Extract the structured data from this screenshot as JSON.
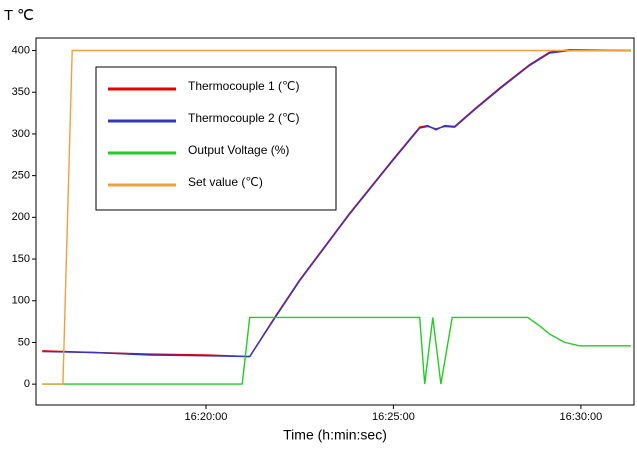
{
  "chart_data": {
    "type": "line",
    "ylabel": "T ℃",
    "xlabel": "Time (h:min:sec)",
    "xlim": [
      "16:15:28",
      "16:31:25"
    ],
    "xticks": [
      "16:20:00",
      "16:25:00",
      "16:30:00"
    ],
    "ylim": [
      -25,
      415
    ],
    "yticks": [
      0,
      50,
      100,
      150,
      200,
      250,
      300,
      350,
      400
    ],
    "grid": false,
    "legend": "upper left",
    "series": [
      {
        "name": "Thermocouple 1 (℃)",
        "color": "#e00000",
        "x": [
          "16:15:38",
          "16:17:00",
          "16:18:30",
          "16:20:00",
          "16:21:10",
          "16:21:50",
          "16:22:30",
          "16:23:50",
          "16:25:00",
          "16:25:42",
          "16:25:55",
          "16:26:08",
          "16:26:22",
          "16:26:38",
          "16:27:10",
          "16:27:50",
          "16:28:38",
          "16:29:10",
          "16:29:42",
          "16:31:20"
        ],
        "values": [
          40,
          38,
          36,
          35,
          33,
          80,
          125,
          205,
          270,
          308,
          310,
          305,
          310,
          309,
          330,
          355,
          383,
          398,
          401,
          400
        ]
      },
      {
        "name": "Thermocouple 2 (℃)",
        "color": "#3535c0",
        "x": [
          "16:15:38",
          "16:17:00",
          "16:18:30",
          "16:20:00",
          "16:21:10",
          "16:21:50",
          "16:22:30",
          "16:23:50",
          "16:25:00",
          "16:25:42",
          "16:25:55",
          "16:26:08",
          "16:26:22",
          "16:26:38",
          "16:27:10",
          "16:27:50",
          "16:28:38",
          "16:29:10",
          "16:29:42",
          "16:31:20"
        ],
        "values": [
          39,
          38,
          35,
          34,
          33,
          79,
          124,
          204,
          269,
          307,
          309,
          306,
          309,
          308,
          329,
          354,
          382,
          397,
          400,
          400
        ]
      },
      {
        "name": "Output Voltage (%)",
        "color": "#22cc22",
        "x": [
          "16:15:38",
          "16:20:58",
          "16:21:10",
          "16:25:42",
          "16:25:50",
          "16:26:03",
          "16:26:16",
          "16:26:34",
          "16:28:35",
          "16:28:54",
          "16:29:10",
          "16:29:34",
          "16:29:58",
          "16:31:20"
        ],
        "values": [
          0,
          0,
          80,
          80,
          0,
          80,
          0,
          80,
          80,
          70,
          60,
          50,
          46,
          46
        ]
      },
      {
        "name": "Set value (℃)",
        "color": "#f0a040",
        "x": [
          "16:15:38",
          "16:16:11",
          "16:16:26",
          "16:31:20"
        ],
        "values": [
          0,
          0,
          400,
          400
        ]
      }
    ]
  }
}
